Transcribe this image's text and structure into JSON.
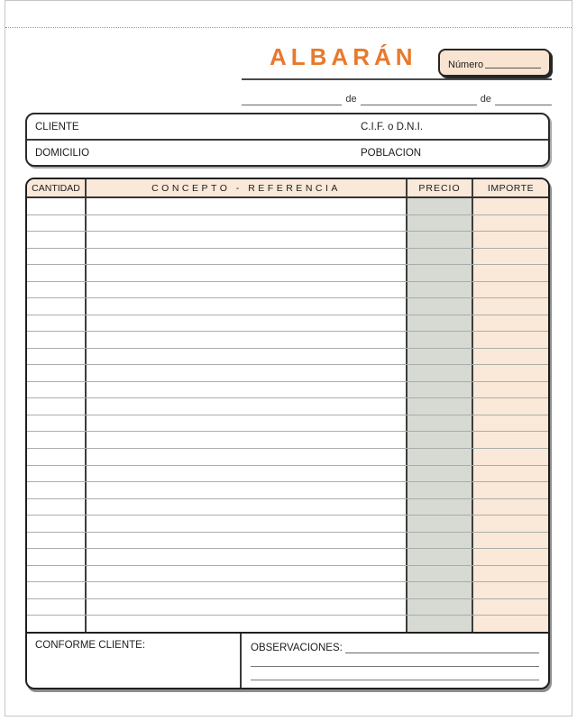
{
  "form": {
    "title": "ALBARÁN",
    "numero_label": "Número",
    "date_de_1": "de",
    "date_de_2": "de",
    "cliente_label": "CLIENTE",
    "cif_label": "C.I.F. o D.N.I.",
    "domicilio_label": "DOMICILIO",
    "poblacion_label": "POBLACION"
  },
  "table": {
    "headers": [
      "CANTIDAD",
      "CONCEPTO - REFERENCIA",
      "PRECIO",
      "IMPORTE"
    ],
    "row_count": 26,
    "cells_empty": true
  },
  "footer": {
    "conforme_label": "CONFORME CLIENTE:",
    "observaciones_label": "OBSERVACIONES:"
  },
  "colors": {
    "accent_orange": "#E8792C",
    "header_peach": "#FAE8D8",
    "numero_box_bg": "#F9E4D1",
    "precio_gray": "#D6DAD3"
  }
}
